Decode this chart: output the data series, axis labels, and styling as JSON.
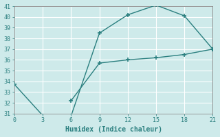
{
  "xlabel": "Humidex (Indice chaleur)",
  "ylabel": "",
  "x_line1": [
    0,
    3,
    6,
    9,
    12,
    15,
    18,
    21
  ],
  "y_line1": [
    33.7,
    30.8,
    30.8,
    38.5,
    40.2,
    41.1,
    40.1,
    37.0
  ],
  "x_line2": [
    6,
    9,
    12,
    15,
    18,
    21
  ],
  "y_line2": [
    32.2,
    35.7,
    36.0,
    36.2,
    36.5,
    37.0
  ],
  "xlim": [
    0,
    21
  ],
  "ylim": [
    31,
    41
  ],
  "xticks": [
    0,
    3,
    6,
    9,
    12,
    15,
    18,
    21
  ],
  "yticks": [
    31,
    32,
    33,
    34,
    35,
    36,
    37,
    38,
    39,
    40,
    41
  ],
  "line_color": "#2a7f7f",
  "bg_color": "#ceeaea",
  "grid_color": "#b8d8d8",
  "font_color": "#2a7f7f"
}
